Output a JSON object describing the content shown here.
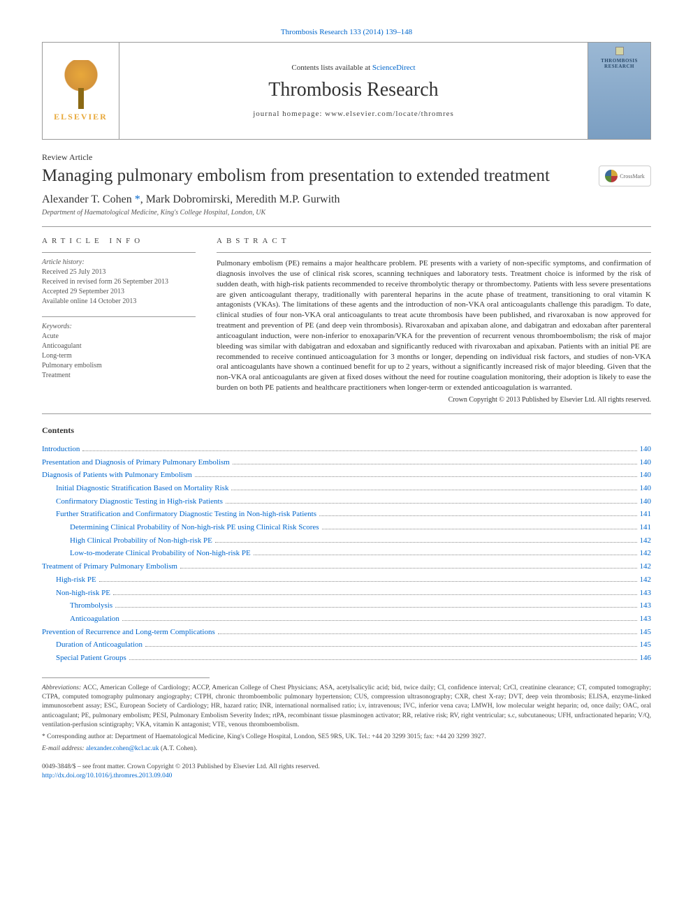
{
  "journal_ref": {
    "journal_link": "Thrombosis Research",
    "citation": "133 (2014) 139–148"
  },
  "header": {
    "contents_prefix": "Contents lists available at ",
    "sciencedirect": "ScienceDirect",
    "journal_title": "Thrombosis Research",
    "homepage_label": "journal homepage: ",
    "homepage_url": "www.elsevier.com/locate/thromres",
    "elsevier": "ELSEVIER",
    "cover_title": "THROMBOSIS RESEARCH"
  },
  "article": {
    "type": "Review Article",
    "title": "Managing pulmonary embolism from presentation to extended treatment",
    "crossmark": "CrossMark",
    "authors_raw": "Alexander T. Cohen *, Mark Dobromirski, Meredith M.P. Gurwith",
    "author1": "Alexander T. Cohen ",
    "author_marker": "*",
    "author_rest": ", Mark Dobromirski, Meredith M.P. Gurwith",
    "affiliation": "Department of Haematological Medicine, King's College Hospital, London, UK"
  },
  "info": {
    "section_label": "article info",
    "history_title": "Article history:",
    "history": [
      "Received 25 July 2013",
      "Received in revised form 26 September 2013",
      "Accepted 29 September 2013",
      "Available online 14 October 2013"
    ],
    "keywords_title": "Keywords:",
    "keywords": [
      "Acute",
      "Anticoagulant",
      "Long-term",
      "Pulmonary embolism",
      "Treatment"
    ]
  },
  "abstract": {
    "section_label": "abstract",
    "text": "Pulmonary embolism (PE) remains a major healthcare problem. PE presents with a variety of non-specific symptoms, and confirmation of diagnosis involves the use of clinical risk scores, scanning techniques and laboratory tests. Treatment choice is informed by the risk of sudden death, with high-risk patients recommended to receive thrombolytic therapy or thrombectomy. Patients with less severe presentations are given anticoagulant therapy, traditionally with parenteral heparins in the acute phase of treatment, transitioning to oral vitamin K antagonists (VKAs). The limitations of these agents and the introduction of non-VKA oral anticoagulants challenge this paradigm. To date, clinical studies of four non-VKA oral anticoagulants to treat acute thrombosis have been published, and rivaroxaban is now approved for treatment and prevention of PE (and deep vein thrombosis). Rivaroxaban and apixaban alone, and dabigatran and edoxaban after parenteral anticoagulant induction, were non-inferior to enoxaparin/VKA for the prevention of recurrent venous thromboembolism; the risk of major bleeding was similar with dabigatran and edoxaban and significantly reduced with rivaroxaban and apixaban. Patients with an initial PE are recommended to receive continued anticoagulation for 3 months or longer, depending on individual risk factors, and studies of non-VKA oral anticoagulants have shown a continued benefit for up to 2 years, without a significantly increased risk of major bleeding. Given that the non-VKA oral anticoagulants are given at fixed doses without the need for routine coagulation monitoring, their adoption is likely to ease the burden on both PE patients and healthcare practitioners when longer-term or extended anticoagulation is warranted.",
    "copyright": "Crown Copyright © 2013 Published by Elsevier Ltd. All rights reserved."
  },
  "contents": {
    "heading": "Contents",
    "items": [
      {
        "title": "Introduction",
        "page": "140",
        "indent": 0
      },
      {
        "title": "Presentation and Diagnosis of Primary Pulmonary Embolism",
        "page": "140",
        "indent": 0
      },
      {
        "title": "Diagnosis of Patients with Pulmonary Embolism",
        "page": "140",
        "indent": 0
      },
      {
        "title": "Initial Diagnostic Stratification Based on Mortality Risk",
        "page": "140",
        "indent": 1
      },
      {
        "title": "Confirmatory Diagnostic Testing in High-risk Patients",
        "page": "140",
        "indent": 1
      },
      {
        "title": "Further Stratification and Confirmatory Diagnostic Testing in Non-high-risk Patients",
        "page": "141",
        "indent": 1
      },
      {
        "title": "Determining Clinical Probability of Non-high-risk PE using Clinical Risk Scores",
        "page": "141",
        "indent": 2
      },
      {
        "title": "High Clinical Probability of Non-high-risk PE",
        "page": "142",
        "indent": 2
      },
      {
        "title": "Low-to-moderate Clinical Probability of Non-high-risk PE",
        "page": "142",
        "indent": 2
      },
      {
        "title": "Treatment of Primary Pulmonary Embolism",
        "page": "142",
        "indent": 0
      },
      {
        "title": "High-risk PE",
        "page": "142",
        "indent": 1
      },
      {
        "title": "Non-high-risk PE",
        "page": "143",
        "indent": 1
      },
      {
        "title": "Thrombolysis",
        "page": "143",
        "indent": 2
      },
      {
        "title": "Anticoagulation",
        "page": "143",
        "indent": 2
      },
      {
        "title": "Prevention of Recurrence and Long-term Complications",
        "page": "145",
        "indent": 0
      },
      {
        "title": "Duration of Anticoagulation",
        "page": "145",
        "indent": 1
      },
      {
        "title": "Special Patient Groups",
        "page": "146",
        "indent": 1
      }
    ]
  },
  "footnotes": {
    "abbrev_label": "Abbreviations:",
    "abbrev_text": " ACC, American College of Cardiology; ACCP, American College of Chest Physicians; ASA, acetylsalicylic acid; bid, twice daily; CI, confidence interval; CrCl, creatinine clearance; CT, computed tomography; CTPA, computed tomography pulmonary angiography; CTPH, chronic thromboembolic pulmonary hypertension; CUS, compression ultrasonography; CXR, chest X-ray; DVT, deep vein thrombosis; ELISA, enzyme-linked immunosorbent assay; ESC, European Society of Cardiology; HR, hazard ratio; INR, international normalised ratio; i.v, intravenous; IVC, inferior vena cava; LMWH, low molecular weight heparin; od, once daily; OAC, oral anticoagulant; PE, pulmonary embolism; PESI, Pulmonary Embolism Severity Index; rtPA, recombinant tissue plasminogen activator; RR, relative risk; RV, right ventricular; s.c, subcutaneous; UFH, unfractionated heparin; V/Q, ventilation-perfusion scintigraphy; VKA, vitamin K antagonist; VTE, venous thromboembolism.",
    "corresponding_marker": "* ",
    "corresponding_text": "Corresponding author at: Department of Haematological Medicine, King's College Hospital, London, SE5 9RS, UK. Tel.: +44 20 3299 3015; fax: +44 20 3299 3927.",
    "email_label": "E-mail address:",
    "email": "alexander.cohen@kcl.ac.uk",
    "email_suffix": " (A.T. Cohen)."
  },
  "bottom": {
    "issn_line": "0049-3848/$ – see front matter. Crown Copyright © 2013 Published by Elsevier Ltd. All rights reserved.",
    "doi": "http://dx.doi.org/10.1016/j.thromres.2013.09.040"
  },
  "colors": {
    "link": "#0066cc",
    "text": "#333333",
    "muted": "#555555",
    "border": "#999999"
  }
}
